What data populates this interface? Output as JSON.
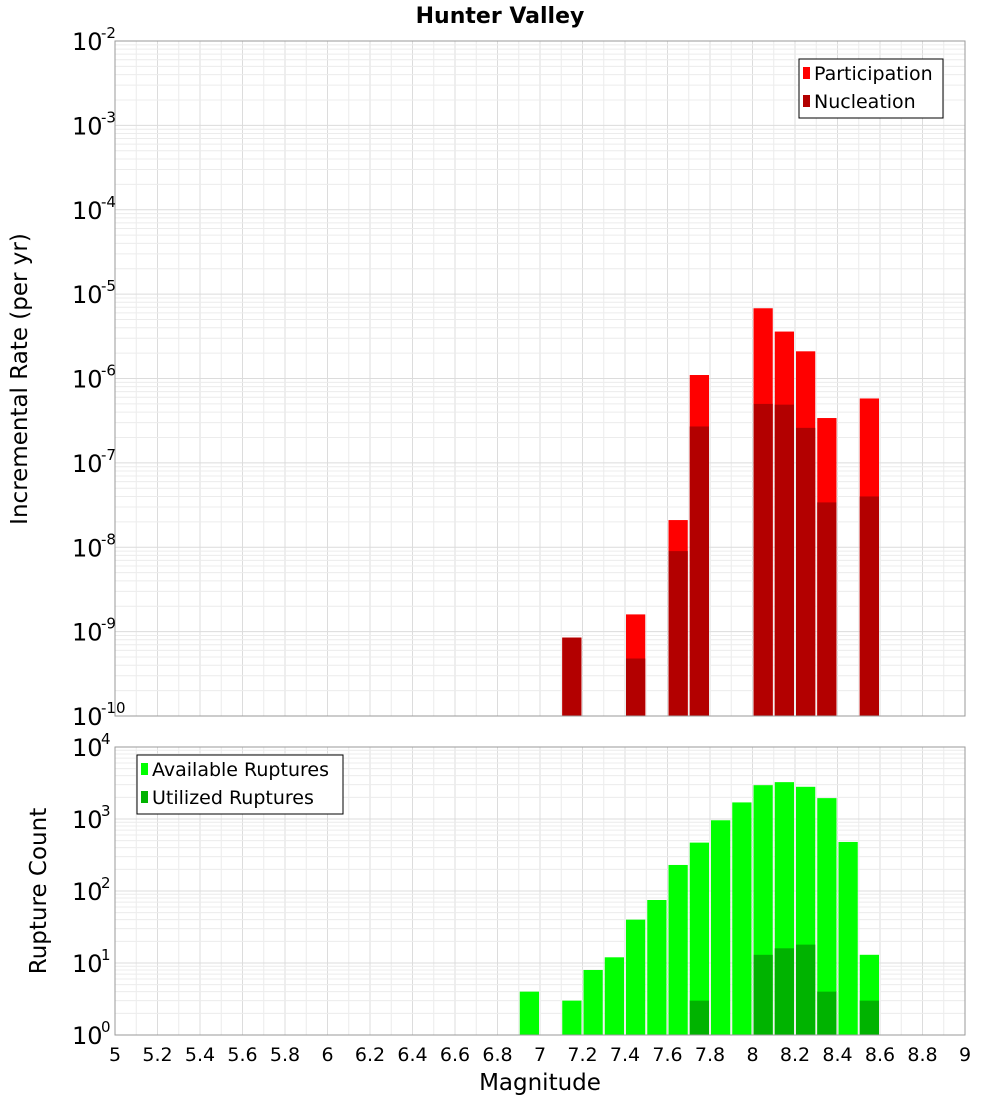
{
  "chart_data": [
    {
      "type": "bar",
      "title": "Hunter Valley",
      "xlabel": "",
      "ylabel": "Incremental Rate (per yr)",
      "yscale": "log",
      "ylim": [
        1e-10,
        0.01
      ],
      "xlim": [
        5,
        9
      ],
      "grid": true,
      "legend_position": "top-right",
      "y_tick_exponents": [
        "-10",
        "-9",
        "-8",
        "-7",
        "-6",
        "-5",
        "-4",
        "-3",
        "-2"
      ],
      "series": [
        {
          "name": "Participation",
          "color": "#ff0000",
          "points": [
            {
              "x": 7.15,
              "y": 8.5e-10
            },
            {
              "x": 7.45,
              "y": 1.6e-09
            },
            {
              "x": 7.65,
              "y": 2.1e-08
            },
            {
              "x": 7.75,
              "y": 1.1e-06
            },
            {
              "x": 8.05,
              "y": 6.8e-06
            },
            {
              "x": 8.15,
              "y": 3.6e-06
            },
            {
              "x": 8.25,
              "y": 2.1e-06
            },
            {
              "x": 8.35,
              "y": 3.4e-07
            },
            {
              "x": 8.55,
              "y": 5.8e-07
            }
          ]
        },
        {
          "name": "Nucleation",
          "color": "#b30000",
          "points": [
            {
              "x": 7.15,
              "y": 8.5e-10
            },
            {
              "x": 7.45,
              "y": 4.8e-10
            },
            {
              "x": 7.65,
              "y": 9e-09
            },
            {
              "x": 7.75,
              "y": 2.7e-07
            },
            {
              "x": 8.05,
              "y": 5e-07
            },
            {
              "x": 8.15,
              "y": 4.9e-07
            },
            {
              "x": 8.25,
              "y": 2.6e-07
            },
            {
              "x": 8.35,
              "y": 3.4e-08
            },
            {
              "x": 8.55,
              "y": 4e-08
            }
          ]
        }
      ]
    },
    {
      "type": "bar",
      "title": "",
      "xlabel": "Magnitude",
      "ylabel": "Rupture Count",
      "yscale": "log",
      "ylim": [
        1,
        10000
      ],
      "xlim": [
        5,
        9
      ],
      "grid": true,
      "legend_position": "top-left",
      "x_ticks": [
        "5",
        "5.2",
        "5.4",
        "5.6",
        "5.8",
        "6",
        "6.2",
        "6.4",
        "6.6",
        "6.8",
        "7",
        "7.2",
        "7.4",
        "7.6",
        "7.8",
        "8",
        "8.2",
        "8.4",
        "8.6",
        "8.8",
        "9"
      ],
      "y_tick_exponents": [
        "0",
        "1",
        "2",
        "3",
        "4"
      ],
      "series": [
        {
          "name": "Available Ruptures",
          "color": "#00ff00",
          "points": [
            {
              "x": 6.95,
              "y": 4
            },
            {
              "x": 7.15,
              "y": 3
            },
            {
              "x": 7.25,
              "y": 8
            },
            {
              "x": 7.35,
              "y": 12
            },
            {
              "x": 7.45,
              "y": 40
            },
            {
              "x": 7.55,
              "y": 75
            },
            {
              "x": 7.65,
              "y": 230
            },
            {
              "x": 7.75,
              "y": 470
            },
            {
              "x": 7.85,
              "y": 960
            },
            {
              "x": 7.95,
              "y": 1700
            },
            {
              "x": 8.05,
              "y": 2950
            },
            {
              "x": 8.15,
              "y": 3250
            },
            {
              "x": 8.25,
              "y": 2800
            },
            {
              "x": 8.35,
              "y": 1950
            },
            {
              "x": 8.45,
              "y": 480
            },
            {
              "x": 8.55,
              "y": 13
            }
          ]
        },
        {
          "name": "Utilized Ruptures",
          "color": "#00b300",
          "points": [
            {
              "x": 7.15,
              "y": 1
            },
            {
              "x": 7.45,
              "y": 1
            },
            {
              "x": 7.65,
              "y": 1
            },
            {
              "x": 7.75,
              "y": 3
            },
            {
              "x": 7.95,
              "y": 1
            },
            {
              "x": 8.05,
              "y": 13
            },
            {
              "x": 8.15,
              "y": 16
            },
            {
              "x": 8.25,
              "y": 18
            },
            {
              "x": 8.35,
              "y": 4
            },
            {
              "x": 8.45,
              "y": 1
            },
            {
              "x": 8.55,
              "y": 3
            }
          ]
        }
      ]
    }
  ]
}
